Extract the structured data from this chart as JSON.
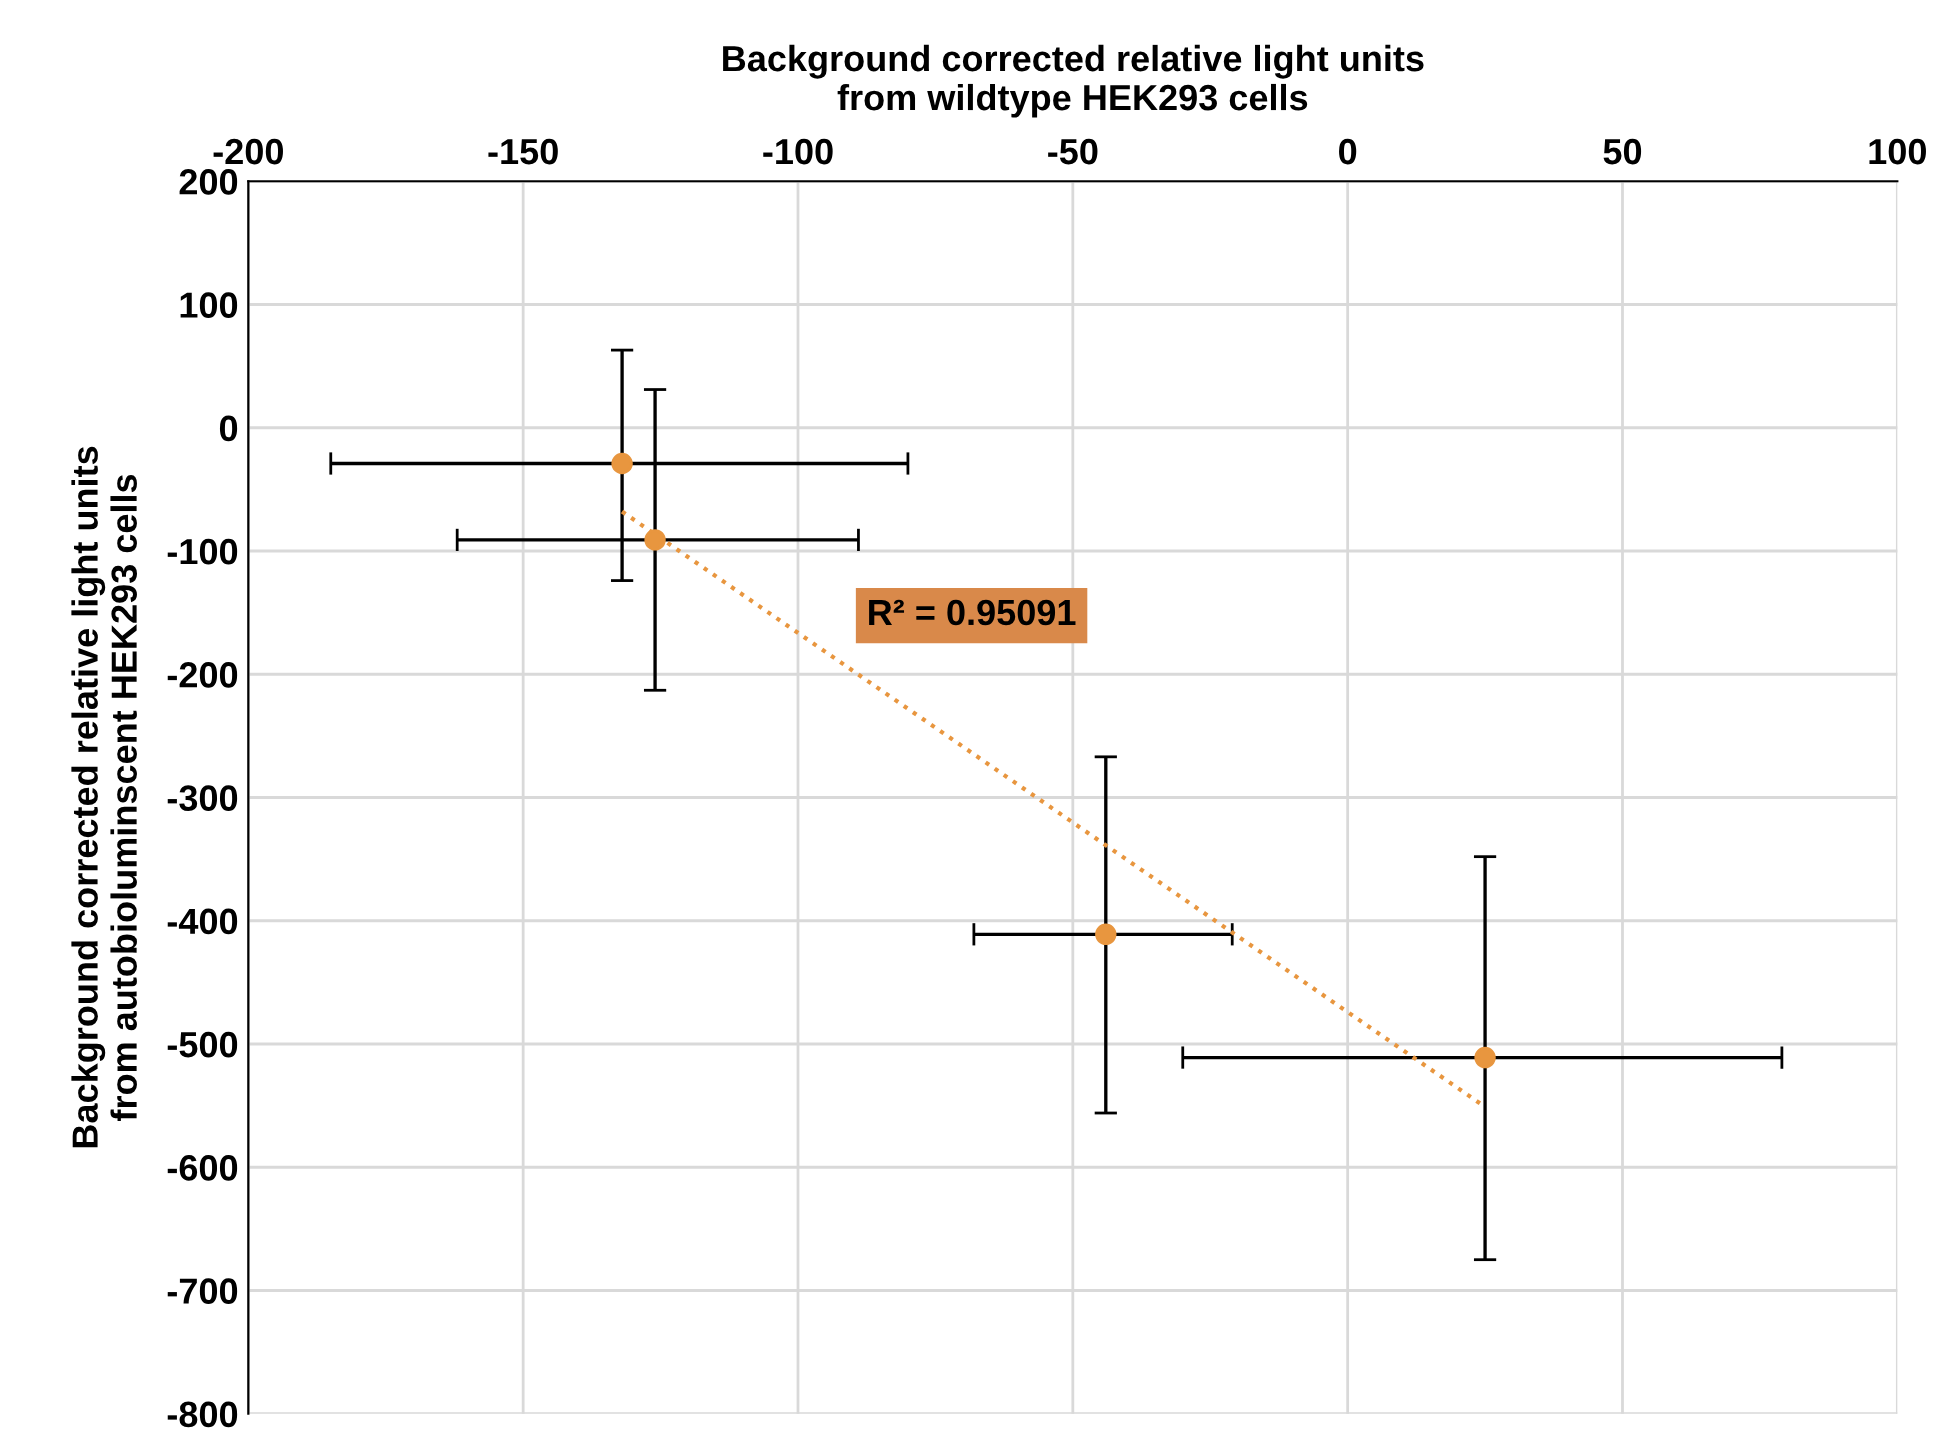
{
  "chart_data": {
    "type": "scatter",
    "xlabel": "Background corrected relative light units\nfrom wildtype HEK293 cells",
    "ylabel": "Background corrected relative light units\nfrom autobioluminscent HEK293 cells",
    "xlim": [
      -200,
      100
    ],
    "xticks": [
      -200,
      -150,
      -100,
      -50,
      0,
      50,
      100
    ],
    "ylim": [
      -800,
      200
    ],
    "yticks": [
      200,
      100,
      0,
      -100,
      -200,
      -300,
      -400,
      -500,
      -600,
      -700,
      -800
    ],
    "grid": true,
    "annotations": [
      "R² = 0.95091"
    ],
    "series": [
      {
        "color": "#e8963f",
        "marker": "circle",
        "x": [
          -132,
          -126,
          -44,
          25
        ],
        "values": [
          -29,
          -91,
          -411,
          -511
        ],
        "errors": [
          [
            -124,
            63
          ],
          [
            -213,
            31
          ],
          [
            -556,
            -267
          ],
          [
            -675,
            -348
          ]
        ],
        "xerrors": [
          [
            -185,
            -80
          ],
          [
            -162,
            -89
          ],
          [
            -68,
            -21
          ],
          [
            -30,
            79
          ]
        ]
      },
      {
        "type": "line",
        "color": "#e8963f",
        "marker": "none",
        "line_style": "dotted",
        "x": [
          -132,
          25
        ],
        "values": [
          -68,
          -551
        ]
      }
    ]
  }
}
